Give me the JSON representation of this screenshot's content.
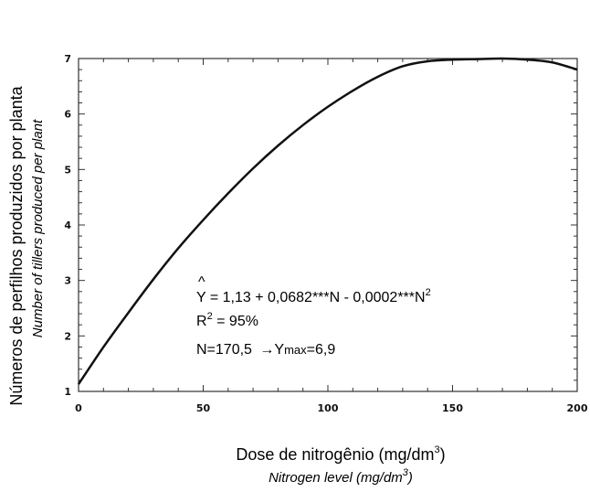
{
  "chart_data": {
    "type": "line",
    "xlabel": "Dose de nitrogênio (mg/dm",
    "xlabel_sup": "3",
    "xlabel_close": ")",
    "xlabel_en": "Nitrogen level (mg/dm",
    "xlabel_en_sup": "3",
    "xlabel_en_close": ")",
    "ylabel": "Números de perfilhos produzidos por planta",
    "ylabel_en": "Number of tillers produced  per plant",
    "xlim": [
      0,
      200
    ],
    "ylim": [
      1,
      7
    ],
    "x_ticks": [
      "0",
      "50",
      "100",
      "150",
      "200"
    ],
    "y_ticks": [
      "1",
      "2",
      "3",
      "4",
      "5",
      "6",
      "7"
    ],
    "grid": false,
    "series": [
      {
        "x": [
          0,
          10,
          20,
          30,
          40,
          50,
          60,
          70,
          80,
          90,
          100,
          110,
          120,
          130,
          140,
          150,
          160,
          170,
          180,
          190,
          200
        ],
        "y": [
          1.13,
          1.8,
          2.42,
          3.02,
          3.58,
          4.09,
          4.57,
          5.02,
          5.43,
          5.8,
          6.13,
          6.42,
          6.67,
          6.86,
          6.95,
          6.98,
          6.99,
          7.0,
          6.98,
          6.93,
          6.8
        ]
      }
    ],
    "annotations": {
      "equation_hat": "^",
      "equation_lhs": "Y",
      "equation_rhs": " = 1,13 + 0,0682***N - 0,0002***N",
      "equation_sup": "2",
      "r2_label": "R",
      "r2_sup": "2",
      "r2_rest": " = 95%",
      "nmax_left": "N=170,5 ",
      "nmax_arrow": "→",
      "nmax_y": "Y",
      "nmax_sub": "max",
      "nmax_value": "=6,9"
    }
  }
}
